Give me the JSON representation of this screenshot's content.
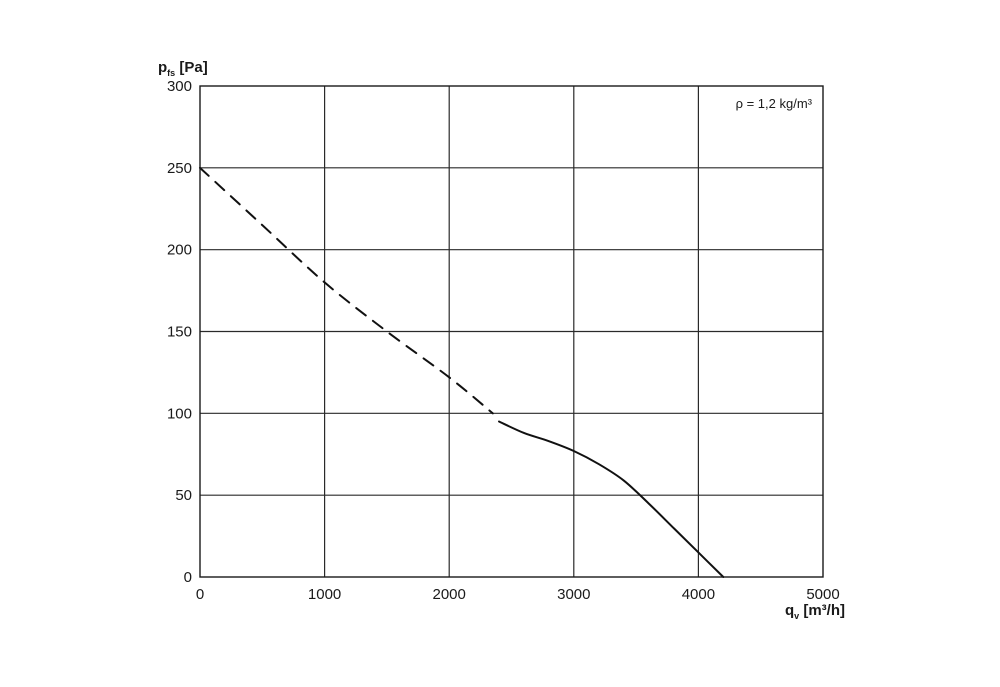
{
  "chart_data": {
    "type": "line",
    "title": "",
    "xlabel": {
      "symbol": "q",
      "subscript": "v",
      "unit": " [m³/h]"
    },
    "ylabel": {
      "symbol": "p",
      "subscript": "fs",
      "unit": " [Pa]"
    },
    "xlim": [
      0,
      5000
    ],
    "ylim": [
      0,
      300
    ],
    "x_ticks": [
      0,
      1000,
      2000,
      3000,
      4000,
      5000
    ],
    "y_ticks": [
      0,
      50,
      100,
      150,
      200,
      250,
      300
    ],
    "grid": true,
    "annotation": "ρ = 1,2 kg/m³",
    "series": [
      {
        "style": "dashed",
        "x": [
          0,
          500,
          1000,
          1500,
          2000,
          2350
        ],
        "y": [
          250,
          215,
          180,
          150,
          122,
          100
        ]
      },
      {
        "style": "solid",
        "x": [
          2400,
          2600,
          2800,
          3000,
          3200,
          3400,
          3600,
          3800,
          4000,
          4200
        ],
        "y": [
          95,
          88,
          83,
          77,
          69,
          59,
          45,
          30,
          15,
          0
        ]
      }
    ]
  }
}
